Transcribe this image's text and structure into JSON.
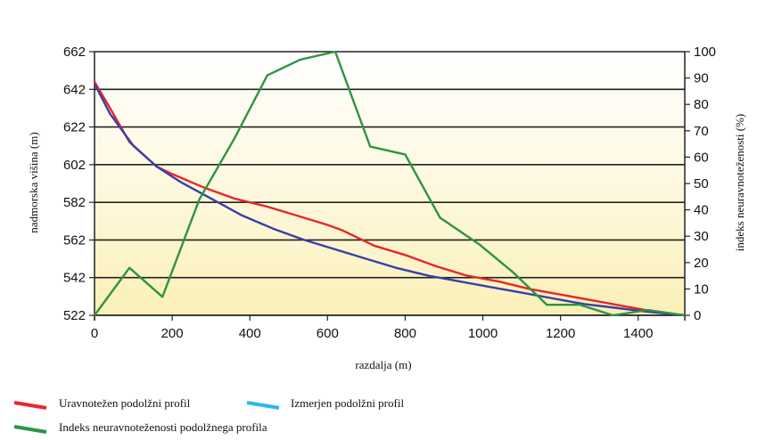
{
  "chart_data": {
    "type": "line",
    "title": "",
    "xlabel": "razdalja (m)",
    "ylabel": "nadmorska višina (m)",
    "y2label": "indeks neuravnoteženosti (%)",
    "xlim": [
      0,
      1520
    ],
    "ylim": [
      522,
      662
    ],
    "y2lim": [
      0,
      100
    ],
    "x_ticks": [
      "0",
      "200",
      "400",
      "600",
      "800",
      "1000",
      "1200",
      "1400"
    ],
    "y_ticks": [
      "522",
      "542",
      "562",
      "582",
      "602",
      "622",
      "642",
      "662"
    ],
    "y2_ticks": [
      "0",
      "10",
      "20",
      "30",
      "40",
      "50",
      "60",
      "70",
      "80",
      "90",
      "100"
    ],
    "grid": true,
    "legend_position": "bottom-left",
    "series": [
      {
        "name": "Uravnotežen podolžni profil",
        "color": "#e8262a",
        "axis": "left",
        "x": [
          0,
          40,
          90,
          160,
          200,
          280,
          360,
          440,
          520,
          600,
          640,
          720,
          800,
          880,
          960,
          1040,
          1120,
          1200,
          1280,
          1360,
          1440,
          1520
        ],
        "y": [
          646,
          632,
          614,
          601,
          597,
          590,
          584,
          580,
          575,
          570,
          567,
          559,
          554,
          548,
          543,
          540,
          536,
          533,
          530,
          527,
          524,
          522
        ]
      },
      {
        "name": "Izmerjen podolžni profil",
        "color": "#3a3fa8",
        "legend_color": "#29b6f6",
        "axis": "left",
        "x": [
          0,
          40,
          100,
          160,
          220,
          300,
          380,
          460,
          540,
          620,
          700,
          780,
          860,
          940,
          1020,
          1100,
          1180,
          1260,
          1340,
          1420,
          1520
        ],
        "y": [
          645,
          629,
          612,
          601,
          593,
          584,
          575,
          568,
          562,
          557,
          552,
          547,
          543,
          540,
          537,
          534,
          531,
          528,
          526,
          524,
          522
        ]
      },
      {
        "name": "Indeks neuravnoteženosti podolžnega profila",
        "color": "#2e9444",
        "axis": "right",
        "x": [
          0,
          90,
          175,
          270,
          360,
          445,
          530,
          620,
          710,
          800,
          890,
          990,
          1080,
          1165,
          1250,
          1335,
          1425,
          1520
        ],
        "y": [
          0,
          18,
          7,
          44,
          67,
          91,
          97,
          100,
          64,
          61,
          37,
          27,
          16,
          4,
          4,
          0,
          2,
          0
        ]
      }
    ]
  }
}
